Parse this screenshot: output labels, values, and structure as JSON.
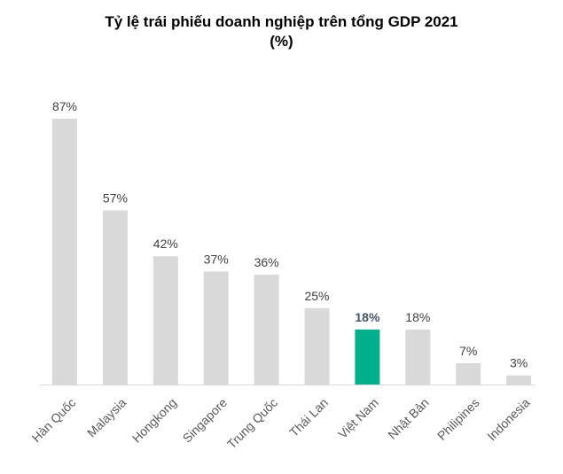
{
  "chart_data": {
    "type": "bar",
    "title": "Tỷ lệ trái phiếu doanh nghiệp trên tổng GDP 2021",
    "subtitle": "(%)",
    "categories": [
      "Hàn Quốc",
      "Malaysia",
      "Hongkong",
      "Singapore",
      "Trung Quốc",
      "Thái Lan",
      "Việt Nam",
      "Nhật Bản",
      "Philipines",
      "Indonesia"
    ],
    "values": [
      87,
      57,
      42,
      37,
      36,
      25,
      18,
      18,
      7,
      3
    ],
    "data_labels": [
      "87%",
      "57%",
      "42%",
      "37%",
      "36%",
      "25%",
      "18%",
      "18%",
      "7%",
      "3%"
    ],
    "highlight_category": "Việt Nam",
    "ylim": [
      0,
      87
    ],
    "grid": false,
    "legend": "none",
    "colors": {
      "bar": "#D9D9D9",
      "highlight": "#00B08C",
      "axis": "#D9D9D9"
    }
  }
}
